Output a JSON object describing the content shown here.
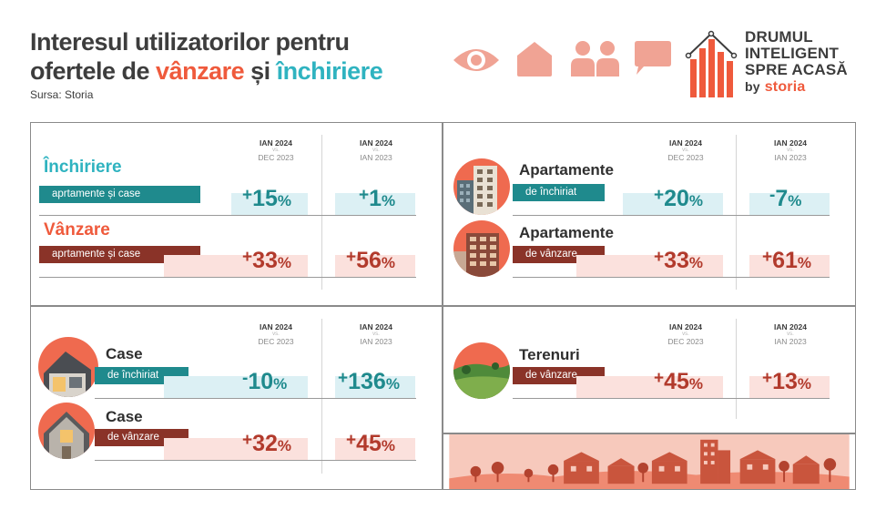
{
  "header": {
    "title_line1": "Interesul utilizatorilor pentru",
    "title_line2_prefix": "ofertele de ",
    "title_word_sale": "vânzare",
    "title_and": " și ",
    "title_word_rent": "închiriere",
    "source": "Sursa: Storia"
  },
  "brand": {
    "line1": "DRUMUL",
    "line2": "INTELIGENT",
    "line3": "SPRE ACASĂ",
    "by": "by",
    "storia": "storia"
  },
  "icons": [
    "eye-icon",
    "house-icon",
    "people-icon",
    "speech-bubble-icon"
  ],
  "columns": {
    "col1_top": "IAN 2024",
    "col1_vs": "vs.",
    "col1_bottom": "DEC 2023",
    "col2_top": "IAN 2024",
    "col2_vs": "vs.",
    "col2_bottom": "IAN 2023"
  },
  "panels": {
    "general": {
      "rent_title": "Închiriere",
      "rent_sub": "aprtamente și case",
      "rent_m_sign": "+",
      "rent_m_num": "15",
      "rent_m_pc": "%",
      "rent_y_sign": "+",
      "rent_y_num": "1",
      "rent_y_pc": "%",
      "sale_title": "Vânzare",
      "sale_sub": "aprtamente și case",
      "sale_m_sign": "+",
      "sale_m_num": "33",
      "sale_m_pc": "%",
      "sale_y_sign": "+",
      "sale_y_num": "56",
      "sale_y_pc": "%"
    },
    "apartments": {
      "rent_title": "Apartamente",
      "rent_sub": "de închiriat",
      "rent_m_sign": "+",
      "rent_m_num": "20",
      "rent_m_pc": "%",
      "rent_y_sign": "-",
      "rent_y_num": "7",
      "rent_y_pc": "%",
      "sale_title": "Apartamente",
      "sale_sub": "de vânzare",
      "sale_m_sign": "+",
      "sale_m_num": "33",
      "sale_m_pc": "%",
      "sale_y_sign": "+",
      "sale_y_num": "61",
      "sale_y_pc": "%"
    },
    "houses": {
      "rent_title": "Case",
      "rent_sub": "de închiriat",
      "rent_m_sign": "-",
      "rent_m_num": "10",
      "rent_m_pc": "%",
      "rent_y_sign": "+",
      "rent_y_num": "136",
      "rent_y_pc": "%",
      "sale_title": "Case",
      "sale_sub": "de vânzare",
      "sale_m_sign": "+",
      "sale_m_num": "32",
      "sale_m_pc": "%",
      "sale_y_sign": "+",
      "sale_y_num": "45",
      "sale_y_pc": "%"
    },
    "land": {
      "sale_title": "Terenuri",
      "sale_sub": "de vânzare",
      "sale_m_sign": "+",
      "sale_m_num": "45",
      "sale_m_pc": "%",
      "sale_y_sign": "+",
      "sale_y_num": "13",
      "sale_y_pc": "%"
    }
  },
  "colors": {
    "teal": "#1f8a8d",
    "teal_light": "#dcf0f4",
    "red": "#8a3328",
    "red_light": "#fbe1dd",
    "accent_orange": "#ef5a3c",
    "accent_cyan": "#2fb3c0",
    "icon_salmon": "#f0a394"
  }
}
